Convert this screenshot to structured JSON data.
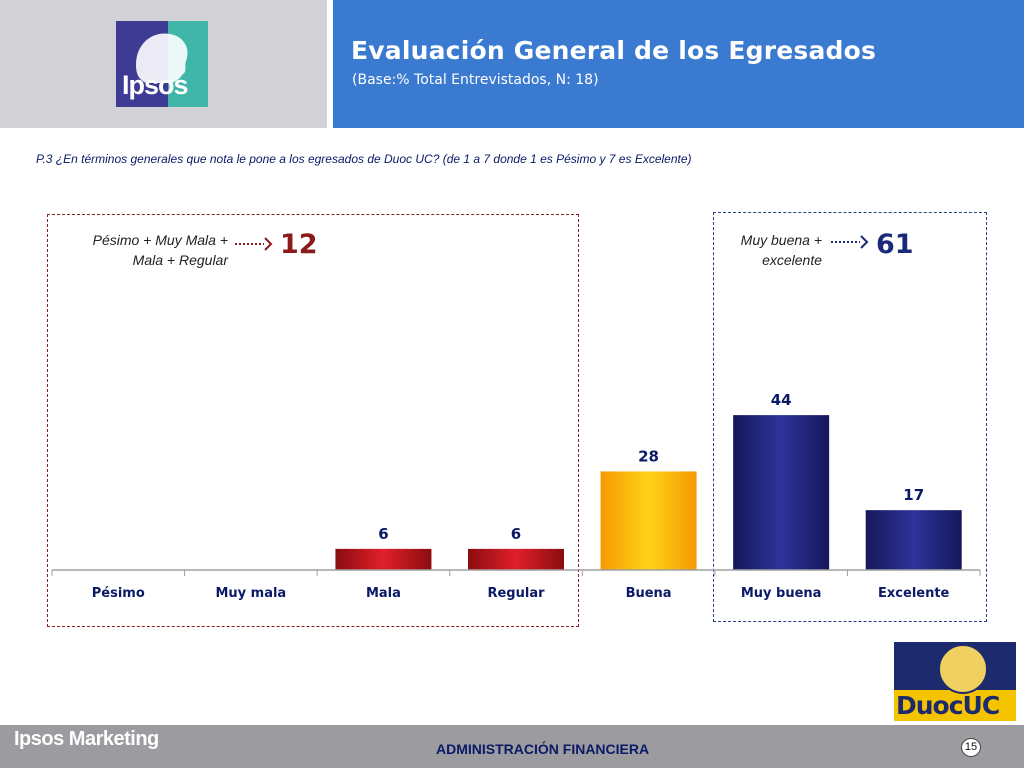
{
  "header": {
    "logo_text": "Ipsos",
    "title": "Evaluación General de los Egresados",
    "subtitle": "(Base:% Total Entrevistados, N: 18)"
  },
  "question": "P.3 ¿En términos generales que nota le pone a los egresados de Duoc UC? (de 1 a 7 donde 1 es Pésimo y 7 es Excelente)",
  "groups": {
    "negative": {
      "label_line1": "Pésimo + Muy Mala +",
      "label_line2": "Mala + Regular",
      "value": "12",
      "color": "#8b1a1a"
    },
    "positive": {
      "label_line1": "Muy buena +",
      "label_line2": "excelente",
      "value": "61",
      "color": "#1a2a7a"
    }
  },
  "chart_data": {
    "type": "bar",
    "categories": [
      "Pésimo",
      "Muy mala",
      "Mala",
      "Regular",
      "Buena",
      "Muy buena",
      "Excelente"
    ],
    "values": [
      null,
      null,
      6,
      6,
      28,
      44,
      17
    ],
    "data_labels": [
      "",
      "",
      "6",
      "6",
      "28",
      "44",
      "17"
    ],
    "colors": [
      "#c8141e",
      "#c8141e",
      "#c8141e",
      "#c8141e",
      "#f5b800",
      "#26287a",
      "#26287a"
    ],
    "ylim": [
      0,
      50
    ],
    "grid": false,
    "legend": "none"
  },
  "footer": {
    "brand": "Ipsos Marketing",
    "center": "ADMINISTRACIÓN FINANCIERA",
    "page": "15"
  },
  "duoc_logo": {
    "text": "DuocUC"
  }
}
